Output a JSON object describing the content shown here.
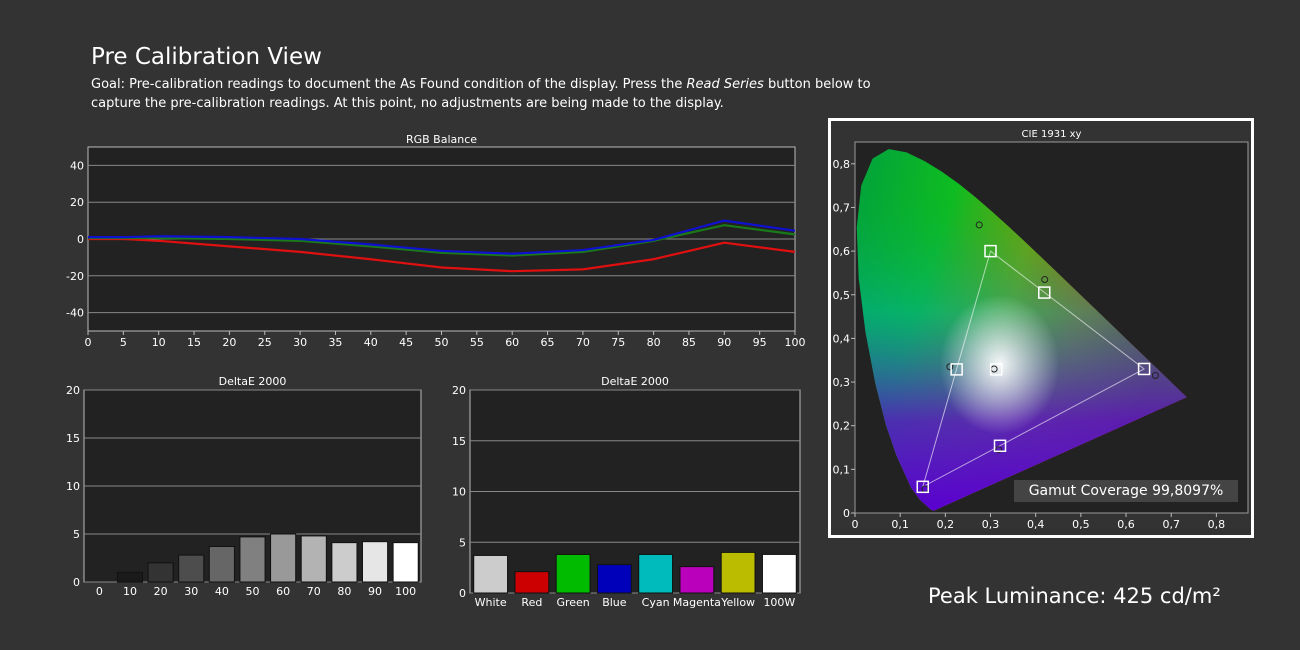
{
  "page": {
    "title": "Pre Calibration View",
    "goal_prefix": "Goal: Pre-calibration readings to document the As Found condition of the display. Press the ",
    "goal_emphasis": "Read Series",
    "goal_suffix": " button below to capture the pre-calibration readings. At this point, no adjustments are being made to the display."
  },
  "peak_luminance": "Peak Luminance: 425 cd/m²",
  "gamut_coverage": "Gamut Coverage 99,8097%",
  "colors": {
    "red": "#e01010",
    "green": "#1a7a1a",
    "blue": "#1010d0",
    "background": "#333333",
    "plot_background": "#222222"
  },
  "chart_data": [
    {
      "id": "rgb",
      "type": "line",
      "title": "RGB Balance",
      "x": [
        0,
        5,
        10,
        20,
        30,
        40,
        50,
        60,
        70,
        80,
        90,
        100
      ],
      "xticks": [
        0,
        5,
        10,
        15,
        20,
        25,
        30,
        35,
        40,
        45,
        50,
        55,
        60,
        65,
        70,
        75,
        80,
        85,
        90,
        95,
        100
      ],
      "yticks": [
        40,
        20,
        0,
        -20,
        -40
      ],
      "xlim": [
        0,
        100
      ],
      "ylim": [
        -50,
        50
      ],
      "grid": true,
      "series": [
        {
          "color": "#e01010",
          "values": [
            0,
            0,
            -1,
            -4,
            -7,
            -11,
            -15.5,
            -17.5,
            -16.5,
            -11,
            -2,
            -7
          ]
        },
        {
          "color": "#1a7a1a",
          "values": [
            0.5,
            0.5,
            0.5,
            0,
            -1,
            -4,
            -7.5,
            -9,
            -7,
            -1,
            7.5,
            2.5
          ]
        },
        {
          "color": "#1010d0",
          "values": [
            1,
            1,
            1.5,
            1,
            0,
            -3,
            -6.5,
            -8,
            -6,
            -0.5,
            10,
            4.5
          ]
        }
      ]
    },
    {
      "id": "de-gray",
      "type": "bar",
      "title": "DeltaE 2000",
      "categories": [
        "0",
        "10",
        "20",
        "30",
        "40",
        "50",
        "60",
        "70",
        "80",
        "90",
        "100"
      ],
      "values": [
        0,
        1.0,
        2.0,
        2.8,
        3.7,
        4.7,
        5.0,
        4.8,
        4.1,
        4.2,
        4.1
      ],
      "bar_colors": [
        "#000000",
        "#1a1a1a",
        "#333333",
        "#4d4d4d",
        "#666666",
        "#808080",
        "#999999",
        "#b3b3b3",
        "#cccccc",
        "#e6e6e6",
        "#ffffff"
      ],
      "yticks": [
        20,
        15,
        10,
        5,
        0
      ],
      "ylim": [
        0,
        20
      ],
      "grid": true
    },
    {
      "id": "de-color",
      "type": "bar",
      "title": "DeltaE 2000",
      "categories": [
        "White",
        "Red",
        "Green",
        "Blue",
        "Cyan",
        "Magenta",
        "Yellow",
        "100W"
      ],
      "values": [
        3.7,
        2.1,
        3.8,
        2.8,
        3.8,
        2.6,
        4.0,
        3.8
      ],
      "bar_colors": [
        "#cccccc",
        "#cc0000",
        "#00bb00",
        "#0000bb",
        "#00bbbb",
        "#bb00bb",
        "#bbbb00",
        "#ffffff"
      ],
      "yticks": [
        20,
        15,
        10,
        5,
        0
      ],
      "ylim": [
        0,
        20
      ],
      "grid": true
    },
    {
      "id": "cie",
      "type": "scatter",
      "title": "CIE 1931 xy",
      "xlim": [
        0,
        0.87
      ],
      "ylim": [
        0,
        0.85
      ],
      "xticks": [
        "0",
        "0,1",
        "0,2",
        "0,3",
        "0,4",
        "0,5",
        "0,6",
        "0,7",
        "0,8"
      ],
      "yticks": [
        "0,8",
        "0,7",
        "0,6",
        "0,5",
        "0,4",
        "0,3",
        "0,2",
        "0,1",
        "0"
      ],
      "target_points": [
        {
          "x": 0.64,
          "y": 0.33
        },
        {
          "x": 0.3,
          "y": 0.6
        },
        {
          "x": 0.15,
          "y": 0.06
        },
        {
          "x": 0.225,
          "y": 0.329
        },
        {
          "x": 0.321,
          "y": 0.154
        },
        {
          "x": 0.419,
          "y": 0.505
        },
        {
          "x": 0.3127,
          "y": 0.329
        }
      ],
      "measured_points": [
        {
          "x": 0.665,
          "y": 0.315
        },
        {
          "x": 0.275,
          "y": 0.66
        },
        {
          "x": 0.155,
          "y": 0.055
        },
        {
          "x": 0.21,
          "y": 0.335
        },
        {
          "x": 0.318,
          "y": 0.145
        },
        {
          "x": 0.42,
          "y": 0.535
        },
        {
          "x": 0.308,
          "y": 0.33
        }
      ]
    }
  ]
}
